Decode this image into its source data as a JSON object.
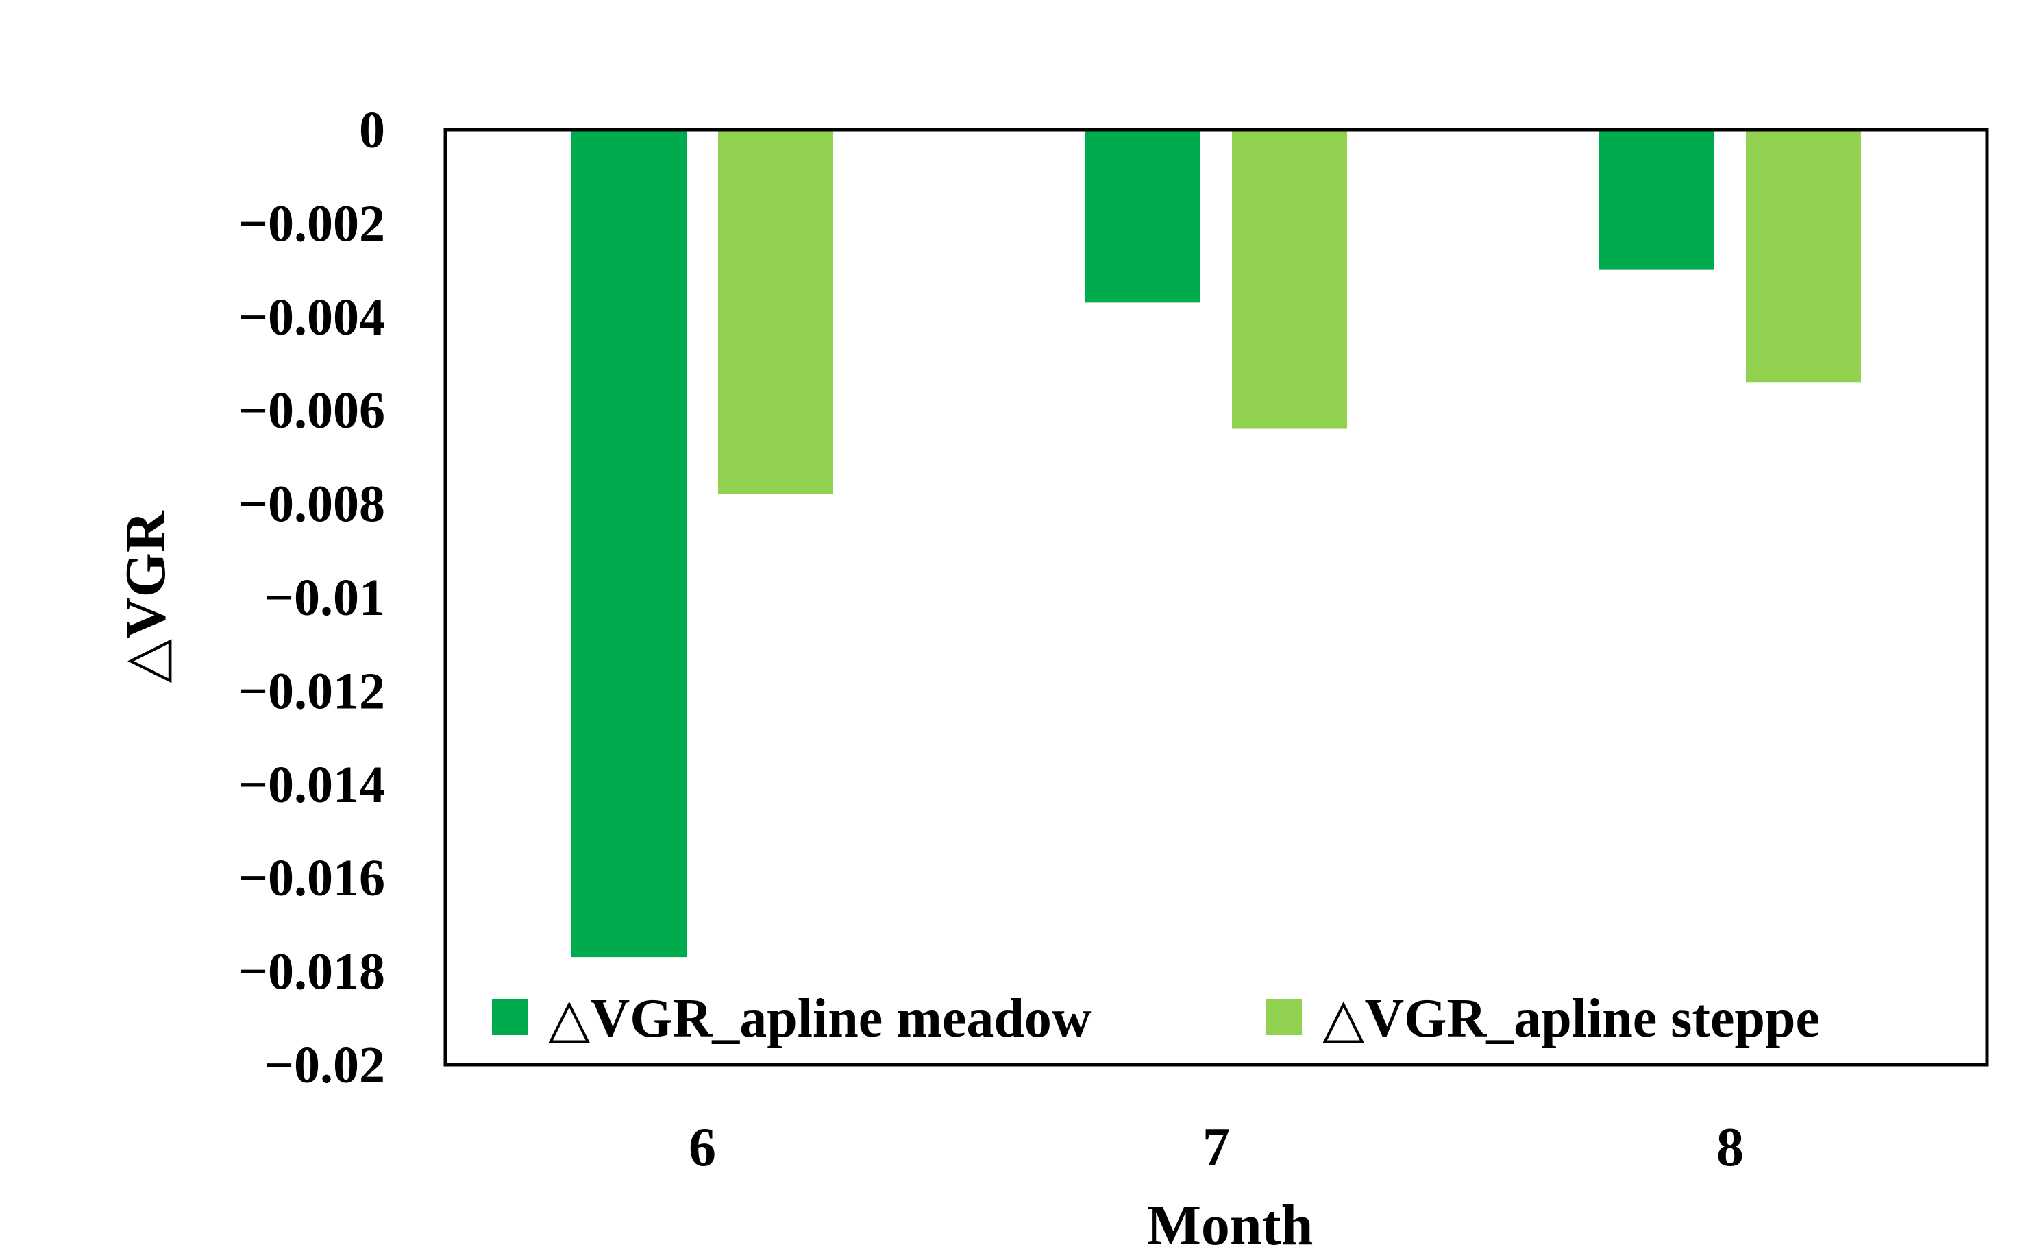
{
  "chart_data": {
    "type": "bar",
    "title": "",
    "xlabel": "Month",
    "ylabel": "△VGR",
    "categories": [
      "6",
      "7",
      "8"
    ],
    "series": [
      {
        "name": "△VGR_apline meadow",
        "color": "#00AB4E",
        "values": [
          -0.0177,
          -0.0037,
          -0.003
        ]
      },
      {
        "name": "△VGR_apline steppe",
        "color": "#92D050",
        "values": [
          -0.0078,
          -0.0064,
          -0.0054
        ]
      }
    ],
    "ylim": [
      -0.02,
      0
    ],
    "yticks": [
      0,
      -0.002,
      -0.004,
      -0.006,
      -0.008,
      -0.01,
      -0.012,
      -0.014,
      -0.016,
      -0.018,
      -0.02
    ],
    "ytick_labels": [
      "0",
      "−0.002",
      "−0.004",
      "−0.006",
      "−0.008",
      "−0.01",
      "−0.012",
      "−0.014",
      "−0.016",
      "−0.018",
      "−0.02"
    ],
    "grid": false,
    "legend_position": "bottom-inside"
  }
}
